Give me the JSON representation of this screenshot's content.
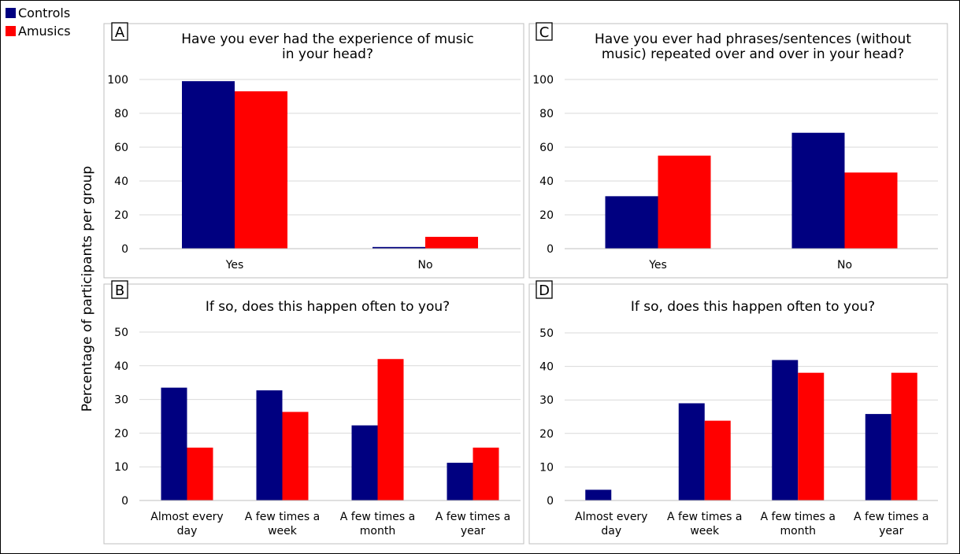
{
  "legend": {
    "items": [
      {
        "label": "Controls",
        "color": "#000080"
      },
      {
        "label": "Amusics",
        "color": "#ff0000"
      }
    ]
  },
  "ylabel": "Percentage of participants per group",
  "colors": {
    "controls": "#000080",
    "amusics": "#ff0000",
    "grid": "#d9d9d9"
  },
  "chart_data": [
    {
      "panel": "A",
      "type": "bar",
      "title": [
        "Have you ever had the experience of music",
        "in your head?"
      ],
      "categories": [
        [
          "Yes"
        ],
        [
          "No"
        ]
      ],
      "ylim": [
        0,
        100
      ],
      "yticks": [
        0,
        20,
        40,
        60,
        80,
        100
      ],
      "grid": true,
      "series": [
        {
          "name": "Controls",
          "values": [
            99,
            1
          ]
        },
        {
          "name": "Amusics",
          "values": [
            93,
            7
          ]
        }
      ]
    },
    {
      "panel": "B",
      "type": "bar",
      "title": [
        "If so, does this happen often to you?"
      ],
      "categories": [
        [
          "Almost every",
          "day"
        ],
        [
          "A few times a",
          "week"
        ],
        [
          "A few times a",
          "month"
        ],
        [
          "A few times a",
          "year"
        ]
      ],
      "ylim": [
        0,
        50
      ],
      "yticks": [
        0,
        10,
        20,
        30,
        40,
        50
      ],
      "grid": true,
      "series": [
        {
          "name": "Controls",
          "values": [
            33.5,
            32.7,
            22.3,
            11.2
          ]
        },
        {
          "name": "Amusics",
          "values": [
            15.7,
            26.3,
            42,
            15.7
          ]
        }
      ]
    },
    {
      "panel": "C",
      "type": "bar",
      "title": [
        "Have you ever had phrases/sentences (without",
        "music) repeated over and over in your head?"
      ],
      "categories": [
        [
          "Yes"
        ],
        [
          "No"
        ]
      ],
      "ylim": [
        0,
        100
      ],
      "yticks": [
        0,
        20,
        40,
        60,
        80,
        100
      ],
      "grid": true,
      "series": [
        {
          "name": "Controls",
          "values": [
            31,
            68.5
          ]
        },
        {
          "name": "Amusics",
          "values": [
            55,
            45
          ]
        }
      ]
    },
    {
      "panel": "D",
      "type": "bar",
      "title": [
        "If so, does this happen often to you?"
      ],
      "categories": [
        [
          "Almost every",
          "day"
        ],
        [
          "A few times a",
          "week"
        ],
        [
          "A few times a",
          "month"
        ],
        [
          "A few times a",
          "year"
        ]
      ],
      "ylim": [
        0,
        50
      ],
      "yticks": [
        0,
        10,
        20,
        30,
        40,
        50
      ],
      "grid": true,
      "series": [
        {
          "name": "Controls",
          "values": [
            3.2,
            29,
            41.9,
            25.8
          ]
        },
        {
          "name": "Amusics",
          "values": [
            0,
            23.8,
            38.1,
            38.1
          ]
        }
      ]
    }
  ]
}
